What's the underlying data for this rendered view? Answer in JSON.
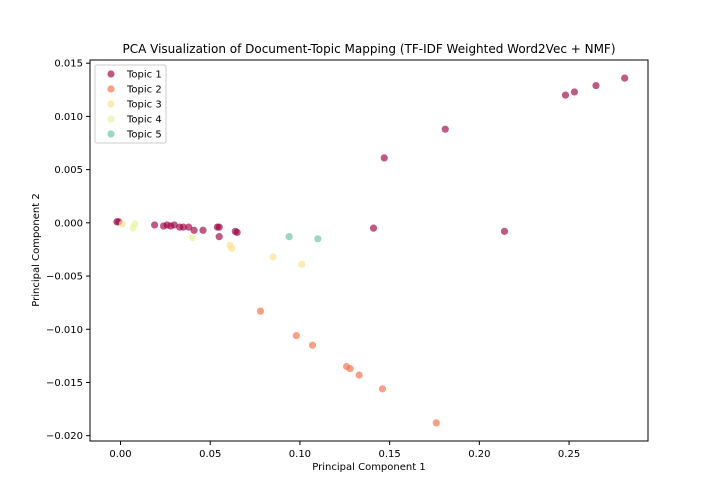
{
  "chart_data": {
    "type": "scatter",
    "title": "PCA Visualization of Document-Topic Mapping (TF-IDF Weighted Word2Vec + NMF)",
    "xlabel": "Principal Component 1",
    "ylabel": "Principal Component 2",
    "xlim": [
      -0.017,
      0.294
    ],
    "ylim": [
      -0.0205,
      0.0153
    ],
    "xticks": [
      0.0,
      0.05,
      0.1,
      0.15,
      0.2,
      0.25
    ],
    "xtick_labels": [
      "0.00",
      "0.05",
      "0.10",
      "0.15",
      "0.20",
      "0.25"
    ],
    "yticks": [
      0.015,
      0.01,
      0.005,
      0.0,
      -0.005,
      -0.01,
      -0.015,
      -0.02
    ],
    "ytick_labels": [
      "0.015",
      "0.010",
      "0.005",
      "0.000",
      "−0.005",
      "−0.010",
      "−0.015",
      "−0.020"
    ],
    "grid": false,
    "legend_position": "top-left",
    "series": [
      {
        "name": "Topic 1",
        "color": "#9e0142",
        "points": [
          [
            0.281,
            0.0136
          ],
          [
            0.265,
            0.0129
          ],
          [
            0.253,
            0.0123
          ],
          [
            0.248,
            0.012
          ],
          [
            0.181,
            0.0088
          ],
          [
            0.147,
            0.0061
          ],
          [
            0.141,
            -0.0005
          ],
          [
            0.214,
            -0.0008
          ],
          [
            -0.002,
            0.0001
          ],
          [
            -0.001,
            0.0001
          ],
          [
            0.019,
            -0.0002
          ],
          [
            0.024,
            -0.0003
          ],
          [
            0.026,
            -0.0002
          ],
          [
            0.028,
            -0.0003
          ],
          [
            0.03,
            -0.0002
          ],
          [
            0.033,
            -0.0004
          ],
          [
            0.035,
            -0.0004
          ],
          [
            0.038,
            -0.0004
          ],
          [
            0.041,
            -0.0007
          ],
          [
            0.046,
            -0.0007
          ],
          [
            0.054,
            -0.0004
          ],
          [
            0.055,
            -0.0004
          ],
          [
            0.055,
            -0.0013
          ],
          [
            0.064,
            -0.0008
          ],
          [
            0.065,
            -0.0009
          ]
        ]
      },
      {
        "name": "Topic 2",
        "color": "#f46d43",
        "points": [
          [
            0.078,
            -0.0083
          ],
          [
            0.098,
            -0.0106
          ],
          [
            0.107,
            -0.0115
          ],
          [
            0.126,
            -0.0135
          ],
          [
            0.128,
            -0.0137
          ],
          [
            0.133,
            -0.0143
          ],
          [
            0.146,
            -0.0156
          ],
          [
            0.176,
            -0.0188
          ]
        ]
      },
      {
        "name": "Topic 3",
        "color": "#fee08b",
        "points": [
          [
            0.001,
            -0.0001
          ],
          [
            0.061,
            -0.0021
          ],
          [
            0.062,
            -0.0024
          ],
          [
            0.085,
            -0.0032
          ],
          [
            0.101,
            -0.0039
          ]
        ]
      },
      {
        "name": "Topic 4",
        "color": "#e6f598",
        "points": [
          [
            0.007,
            -0.0005
          ],
          [
            0.008,
            -0.0001
          ],
          [
            0.04,
            -0.0014
          ]
        ]
      },
      {
        "name": "Topic 5",
        "color": "#66c2a5",
        "points": [
          [
            0.094,
            -0.0013
          ],
          [
            0.11,
            -0.0015
          ]
        ]
      }
    ]
  }
}
